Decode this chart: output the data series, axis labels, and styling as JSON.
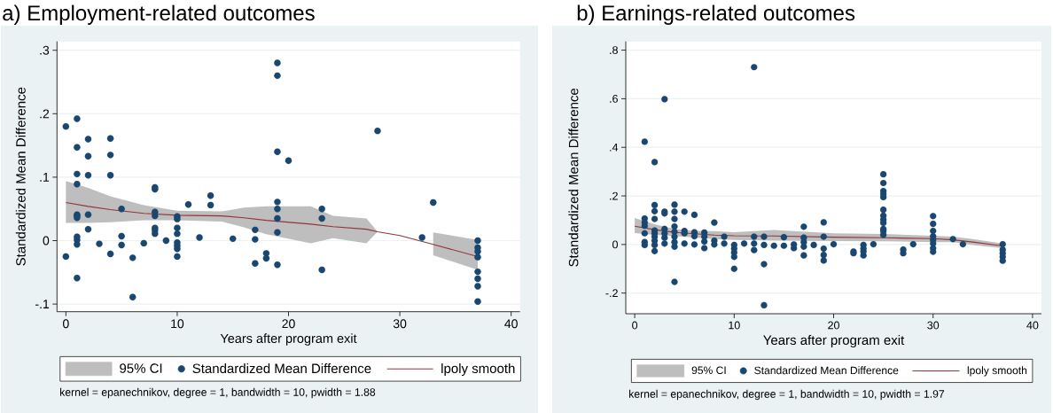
{
  "chart_data": [
    {
      "type": "scatter",
      "title": "a) Employment-related outcomes",
      "xlabel": "Years after program exit",
      "ylabel": "Standardized Mean Difference",
      "annotations": [
        "kernel = epanechnikov, degree = 1, bandwidth = 10, pwidth = 1.88"
      ],
      "xlim": [
        -0.8,
        40.8
      ],
      "ylim": [
        -0.112,
        0.314
      ],
      "xticks": [
        0,
        10,
        20,
        30,
        40
      ],
      "yticks": [
        {
          "value": -0.1,
          "label": "-.1"
        },
        0,
        {
          "value": 0.1,
          "label": ".1"
        },
        {
          "value": 0.2,
          "label": ".2"
        },
        {
          "value": 0.3,
          "label": ".3"
        }
      ],
      "grid": "y",
      "legend": "bottom",
      "series": [
        {
          "name": "95% CI",
          "type": "area",
          "color": "#bebebe"
        },
        {
          "name": "Standardized Mean Difference",
          "type": "scatter",
          "color": "#1a476f",
          "marker": "circle",
          "x": [
            0,
            0,
            1,
            1,
            1,
            1,
            1,
            1,
            1,
            1,
            1,
            1,
            1,
            2,
            2,
            2,
            2,
            2,
            3,
            4,
            4,
            4,
            4,
            5,
            5,
            5,
            6,
            6,
            7,
            8,
            8,
            8,
            8,
            8,
            8,
            8,
            9,
            10,
            10,
            10,
            10,
            10,
            10,
            10,
            10,
            11,
            12,
            13,
            13,
            15,
            17,
            17,
            17,
            18,
            18,
            19,
            19,
            19,
            19,
            19,
            19,
            19,
            19,
            20,
            23,
            23,
            23,
            28,
            32,
            33,
            37,
            37,
            37,
            37,
            37,
            37,
            37,
            37
          ],
          "values": [
            0.18,
            -0.025,
            0.192,
            0.147,
            0.105,
            0.089,
            0.041,
            0.039,
            0.036,
            0.006,
            0.001,
            -0.006,
            -0.059,
            0.16,
            0.133,
            0.103,
            0.041,
            0.018,
            -0.005,
            0.161,
            0.135,
            0.103,
            -0.021,
            0.05,
            0.007,
            -0.007,
            -0.027,
            -0.089,
            -0.004,
            0.084,
            0.081,
            0.045,
            0.039,
            0.02,
            0.016,
            0.011,
            0.0,
            0.038,
            0.034,
            0.02,
            0.011,
            -0.003,
            -0.008,
            -0.013,
            -0.025,
            0.057,
            0.005,
            0.071,
            0.056,
            0.003,
            0.017,
            0.002,
            -0.036,
            -0.02,
            -0.028,
            0.28,
            0.26,
            0.14,
            0.061,
            0.05,
            0.035,
            0.013,
            -0.038,
            0.126,
            0.05,
            0.035,
            -0.046,
            0.173,
            0.005,
            0.06,
            0.0,
            -0.011,
            -0.017,
            -0.026,
            -0.049,
            -0.06,
            -0.072,
            -0.096
          ]
        },
        {
          "name": "lpoly smooth",
          "type": "line",
          "color": "#90353b",
          "line_style": "solid",
          "x": [
            0,
            2,
            4,
            7,
            10,
            14,
            16,
            18,
            22,
            24,
            27,
            28,
            30,
            33,
            37
          ],
          "values": [
            0.06,
            0.054,
            0.049,
            0.043,
            0.04,
            0.039,
            0.036,
            0.032,
            0.026,
            0.022,
            0.018,
            0.014,
            0.008,
            -0.006,
            -0.025
          ],
          "upper": [
            0.094,
            0.083,
            0.07,
            0.056,
            0.047,
            0.046,
            0.052,
            0.054,
            0.054,
            0.039,
            0.035,
            0.014,
            null,
            0.013,
            0.001
          ],
          "lower": [
            0.028,
            0.028,
            0.029,
            0.032,
            0.032,
            0.03,
            0.021,
            0.01,
            -0.004,
            0.004,
            -0.004,
            0.014,
            null,
            -0.023,
            -0.046
          ]
        }
      ]
    },
    {
      "type": "scatter",
      "title": "b) Earnings-related outcomes",
      "xlabel": "Years after program exit",
      "ylabel": "Standardized Mean Difference",
      "annotations": [
        "kernel = epanechnikov, degree = 1, bandwidth = 10, pwidth = 1.97"
      ],
      "xlim": [
        -0.9,
        40.9
      ],
      "ylim": [
        -0.285,
        0.836
      ],
      "xticks": [
        0,
        10,
        20,
        30,
        40
      ],
      "yticks": [
        {
          "value": -0.2,
          "label": "-.2"
        },
        0,
        {
          "value": 0.2,
          "label": ".2"
        },
        {
          "value": 0.4,
          "label": ".4"
        },
        {
          "value": 0.6,
          "label": ".6"
        },
        {
          "value": 0.8,
          "label": ".8"
        }
      ],
      "grid": "y",
      "legend": "bottom",
      "series": [
        {
          "name": "95% CI",
          "type": "area",
          "color": "#bebebe"
        },
        {
          "name": "Standardized Mean Difference",
          "type": "scatter",
          "color": "#1a476f",
          "marker": "circle",
          "x": [
            1,
            1,
            1,
            1,
            1,
            1,
            1,
            2,
            2,
            2,
            2,
            2,
            2,
            2,
            2,
            2,
            2,
            3,
            3,
            3,
            3,
            3,
            3,
            3,
            4,
            4,
            4,
            4,
            4,
            4,
            4,
            4,
            4,
            5,
            5,
            5,
            5,
            6,
            6,
            6,
            6,
            7,
            7,
            7,
            7,
            8,
            8,
            8,
            9,
            9,
            10,
            10,
            10,
            10,
            10,
            11,
            12,
            12,
            12,
            12,
            13,
            13,
            13,
            13,
            14,
            15,
            15,
            16,
            16,
            17,
            17,
            17,
            17,
            17,
            18,
            19,
            19,
            19,
            19,
            19,
            20,
            22,
            22,
            23,
            23,
            23,
            23,
            24,
            25,
            25,
            25,
            25,
            25,
            25,
            25,
            25,
            25,
            25,
            25,
            25,
            27,
            27,
            28,
            30,
            30,
            30,
            30,
            30,
            30,
            30,
            30,
            32,
            33,
            37,
            37,
            37,
            37,
            37
          ],
          "values": [
            0.423,
            0.107,
            0.091,
            0.077,
            0.046,
            0.01,
            -0.002,
            0.339,
            0.162,
            0.137,
            0.105,
            0.058,
            0.046,
            0.032,
            0.016,
            -0.002,
            -0.027,
            0.598,
            0.135,
            0.128,
            0.064,
            0.046,
            0.028,
            0.004,
            0.164,
            0.135,
            0.105,
            0.074,
            0.052,
            0.032,
            0.01,
            -0.009,
            -0.154,
            0.135,
            0.056,
            0.046,
            0.004,
            0.122,
            0.05,
            0.034,
            0.0,
            0.049,
            0.032,
            0.012,
            -0.015,
            0.09,
            0.016,
            0.0,
            0.032,
            0.004,
            -0.002,
            -0.017,
            -0.033,
            -0.051,
            -0.1,
            0.004,
            0.73,
            0.032,
            0.004,
            -0.023,
            0.032,
            -0.002,
            -0.081,
            -0.25,
            -0.005,
            0.03,
            -0.005,
            0.0,
            -0.015,
            0.073,
            0.028,
            0.01,
            -0.009,
            -0.045,
            -0.002,
            0.091,
            0.032,
            -0.017,
            -0.043,
            -0.066,
            0.001,
            -0.029,
            -0.036,
            -0.002,
            -0.017,
            -0.029,
            -0.045,
            0.001,
            0.289,
            0.253,
            0.22,
            0.208,
            0.195,
            0.143,
            0.119,
            0.103,
            0.089,
            0.064,
            0.055,
            0.04,
            -0.021,
            -0.036,
            0.001,
            0.117,
            0.085,
            0.056,
            0.034,
            0.019,
            0.004,
            -0.015,
            -0.03,
            0.022,
            0.001,
            0.001,
            -0.021,
            -0.036,
            -0.051,
            -0.067
          ]
        },
        {
          "name": "lpoly smooth",
          "type": "line",
          "color": "#90353b",
          "line_style": "solid",
          "x": [
            0,
            2,
            4,
            6,
            8,
            10,
            14,
            20,
            25,
            30,
            32,
            34,
            37
          ],
          "values": [
            0.075,
            0.061,
            0.05,
            0.044,
            0.039,
            0.036,
            0.035,
            0.03,
            0.028,
            0.024,
            0.019,
            0.01,
            -0.006
          ],
          "upper": [
            0.109,
            0.083,
            0.064,
            0.056,
            0.055,
            0.051,
            0.06,
            0.046,
            0.043,
            0.036,
            0.032,
            0.022,
            0.004
          ],
          "lower": [
            0.047,
            0.04,
            0.034,
            0.029,
            0.022,
            0.019,
            0.016,
            0.014,
            0.013,
            0.01,
            0.01,
            -0.002,
            -0.015
          ]
        }
      ]
    }
  ]
}
